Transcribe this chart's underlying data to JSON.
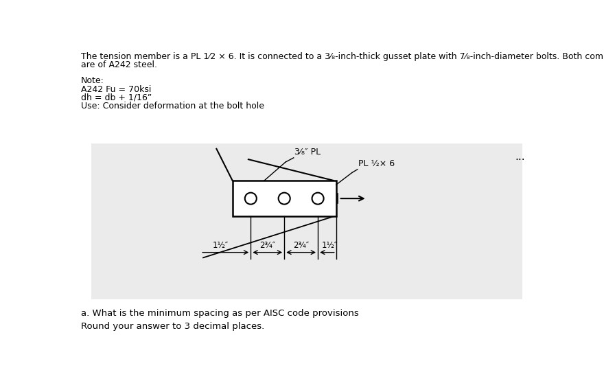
{
  "white": "#ffffff",
  "black": "#000000",
  "gray_panel": "#ebebeb",
  "title_text_line1": "The tension member is a PL 1⁄2 × 6. It is connected to a 3⁄₈-inch-thick gusset plate with 7⁄₈-inch-diameter bolts. Both components",
  "title_text_line2": "are of A242 steel.",
  "note_lines": [
    "Note:",
    "A242 Fu = 70ksi",
    "dh = db + 1/16”",
    "Use: Consider deformation at the bolt hole"
  ],
  "label_38PL": "3⁄₈″ PL",
  "label_PL": "PL ½× 6",
  "label_1half_left": "1½″",
  "label_2_3_4_left": "2¾″",
  "label_2_3_4_right": "2¾″",
  "label_1half_right": "1½″",
  "question_a": "a. What is the minimum spacing as per AISC code provisions",
  "round_text": "Round your answer to 3 decimal places.",
  "ellipsis": "..."
}
